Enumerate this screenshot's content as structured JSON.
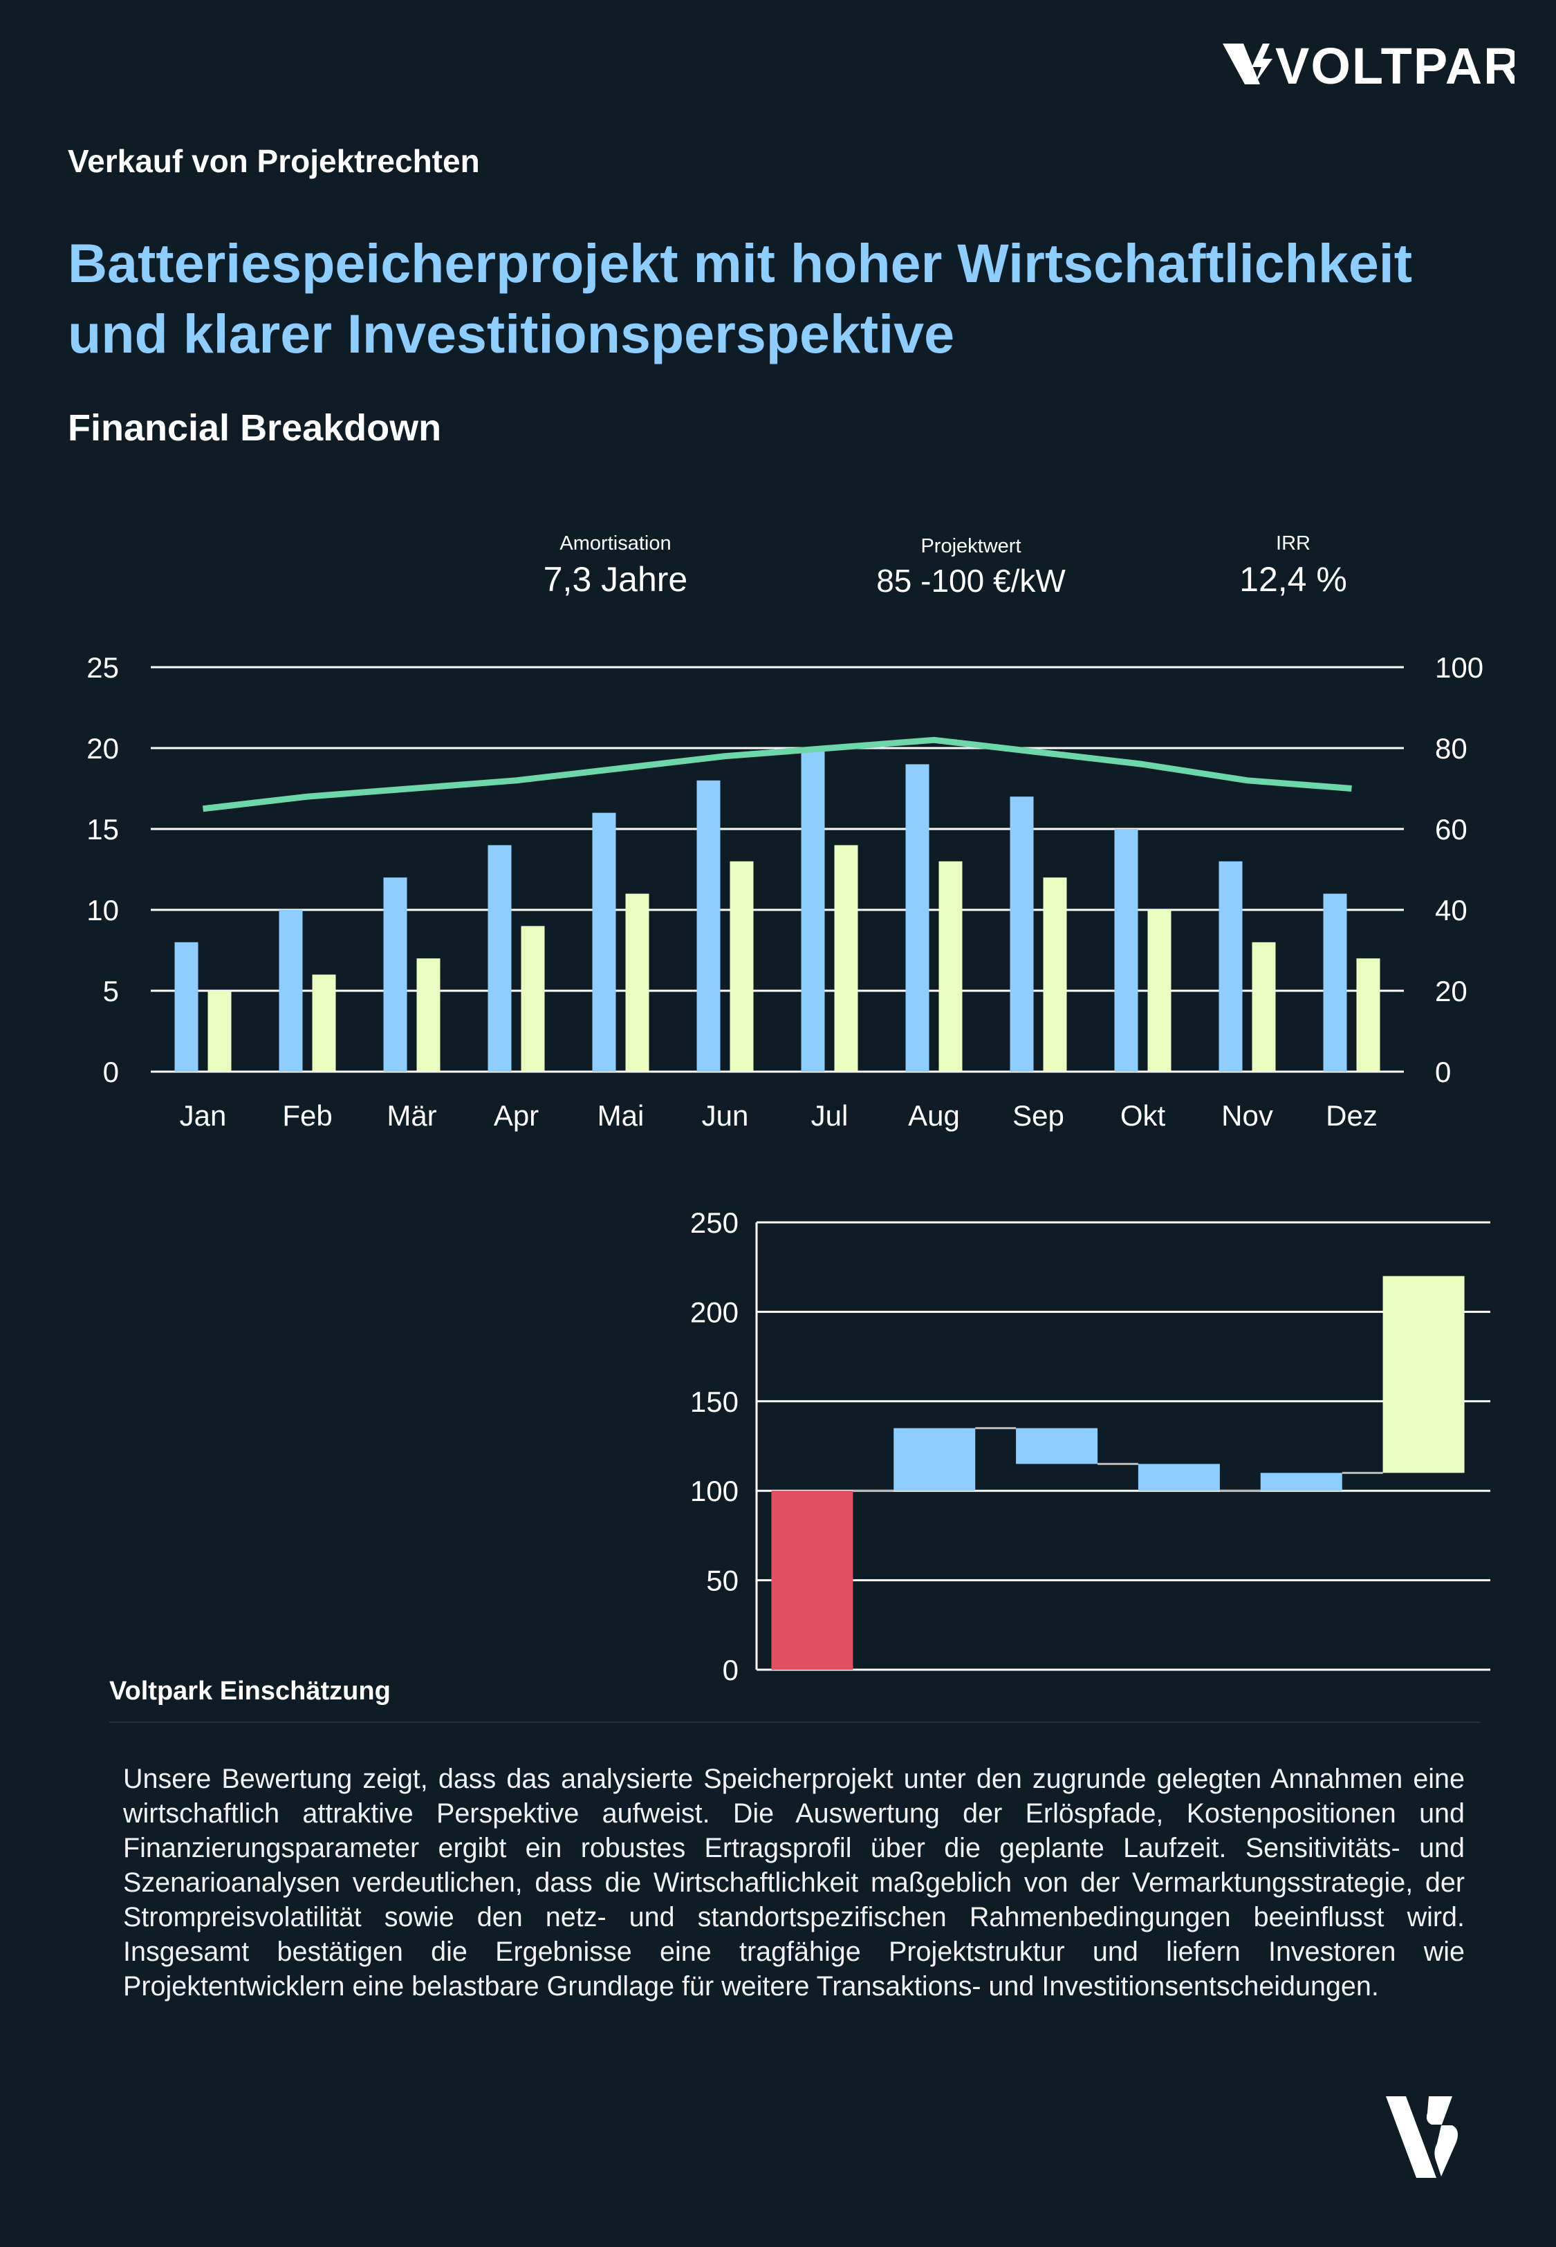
{
  "brand": {
    "logo_text": "VOLTPARK",
    "mark": "V-lightning-logo"
  },
  "header": {
    "subtitle": "Verkauf von Projektrechten",
    "title": "Batteriespeicherprojekt mit hoher Wirtschaftlichkeit und klarer Investitionsperspektive",
    "section": "Financial Breakdown"
  },
  "kpis": [
    {
      "label": "Amortisation",
      "value": "7,3 Jahre"
    },
    {
      "label": "Projektwert",
      "value": "85 -100 €/kW"
    },
    {
      "label": "IRR",
      "value": "12,4 %"
    }
  ],
  "chart_data": [
    {
      "type": "bar+line",
      "categories": [
        "Jan",
        "Feb",
        "Mär",
        "Apr",
        "Mai",
        "Jun",
        "Jul",
        "Aug",
        "Sep",
        "Okt",
        "Nov",
        "Dez"
      ],
      "series": [
        {
          "axis": "left",
          "kind": "bar",
          "color": "#8ecdff",
          "values": [
            8,
            10,
            12,
            14,
            16,
            18,
            20,
            19,
            17,
            15,
            13,
            11
          ]
        },
        {
          "axis": "left",
          "kind": "bar",
          "color": "#eafcc0",
          "values": [
            5,
            6,
            7,
            9,
            11,
            13,
            14,
            13,
            12,
            10,
            8,
            7
          ]
        },
        {
          "axis": "right",
          "kind": "line",
          "color": "#6dd6ab",
          "values": [
            65,
            68,
            70,
            72,
            75,
            78,
            80,
            82,
            79,
            76,
            72,
            70
          ]
        }
      ],
      "ylim": [
        0,
        25
      ],
      "yticks": [
        0,
        5,
        10,
        15,
        20,
        25
      ],
      "y2lim": [
        0,
        100
      ],
      "y2ticks": [
        0,
        20,
        40,
        60,
        80,
        100
      ],
      "grid": true,
      "legend": "none"
    },
    {
      "type": "waterfall",
      "steps": [
        {
          "from": 0,
          "to": 100,
          "color": "#e05062"
        },
        {
          "from": 100,
          "to": 135,
          "color": "#8ecdff"
        },
        {
          "from": 135,
          "to": 115,
          "color": "#8ecdff"
        },
        {
          "from": 115,
          "to": 100,
          "color": "#8ecdff"
        },
        {
          "from": 100,
          "to": 110,
          "color": "#8ecdff"
        },
        {
          "from": 110,
          "to": 220,
          "color": "#eafcc0"
        }
      ],
      "ylim": [
        0,
        250
      ],
      "yticks": [
        0,
        50,
        100,
        150,
        200,
        250
      ],
      "grid": true,
      "legend": "none"
    }
  ],
  "assessment": {
    "heading": "Voltpark Einschätzung",
    "text": "Unsere Bewertung zeigt, dass das analysierte Speicherprojekt unter den zugrunde gelegten Annahmen eine wirtschaftlich attraktive Perspektive aufweist. Die Auswertung der Erlöspfade, Kostenpositionen und Finanzierungsparameter ergibt ein robustes Ertragsprofil über die geplante Laufzeit. Sensitivitäts- und Szenarioanalysen verdeutlichen, dass die Wirtschaftlichkeit maßgeblich von der Vermarktungsstrategie, der Strompreisvolatilität sowie den netz- und standortspezifischen Rahmenbedingungen beeinflusst wird. Insgesamt bestätigen die Ergebnisse eine tragfähige Projektstruktur und liefern Investoren wie Projektentwicklern eine belastbare Grundlage für weitere Transaktions- und Investitionsentscheidungen."
  }
}
